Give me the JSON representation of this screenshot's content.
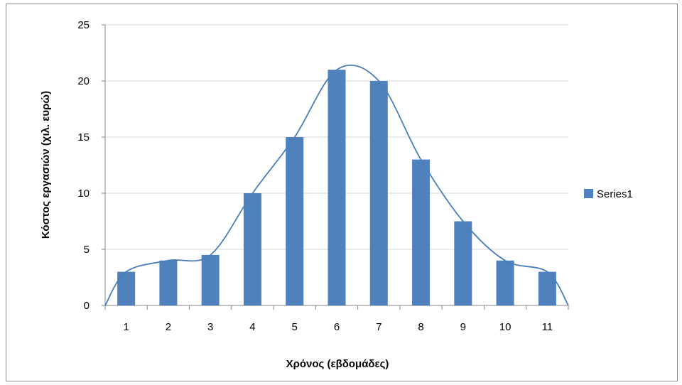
{
  "chart_data": {
    "type": "bar",
    "title": "",
    "xlabel": "Χρόνος (εβδομάδες)",
    "ylabel": "Κόστος εργασιών (χιλ. ευρώ)",
    "categories": [
      "1",
      "2",
      "3",
      "4",
      "5",
      "6",
      "7",
      "8",
      "9",
      "10",
      "11"
    ],
    "series": [
      {
        "name": "Series1",
        "values": [
          3,
          4,
          4.5,
          10,
          15,
          21,
          20,
          13,
          7.5,
          4,
          3
        ],
        "color": "#4f81bd"
      }
    ],
    "trendline": {
      "type": "smoothed line",
      "color": "#4a7ebb"
    },
    "ylim": [
      0,
      25
    ],
    "yticks": [
      0,
      5,
      10,
      15,
      20,
      25
    ],
    "grid": true,
    "legend": "right"
  }
}
